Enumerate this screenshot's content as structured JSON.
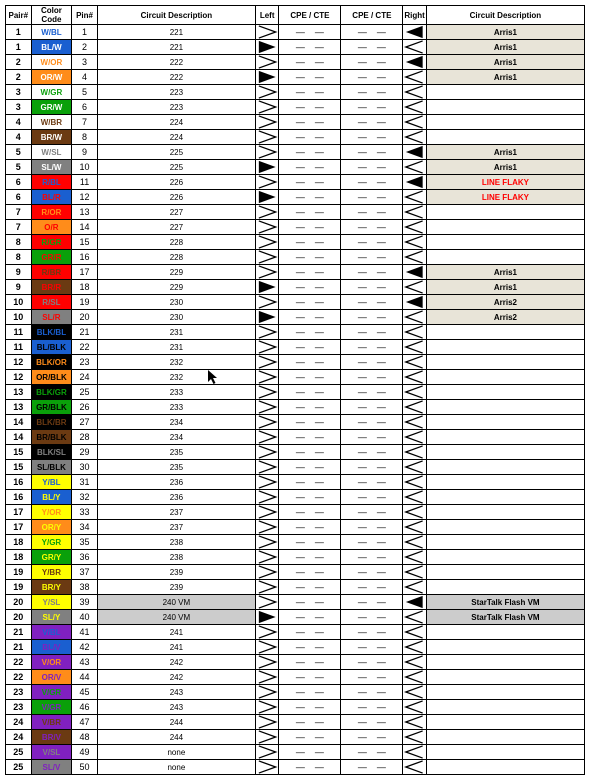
{
  "headers": {
    "pair": "Pair#",
    "color": "Color Code",
    "pin": "Pin#",
    "descL": "Circuit Description",
    "left": "Left",
    "cpe1": "CPE / CTE",
    "cpe2": "CPE / CTE",
    "right": "Right",
    "descR": "Circuit Description"
  },
  "tri_svg": {
    "open_left": "<svg viewBox='0 0 20 15'><polyline points='1,1 19,7.5 1,14' fill='none' stroke='#000' stroke-width='1.4'/></svg>",
    "open_right": "<svg viewBox='0 0 20 15'><polyline points='19,1 1,7.5 19,14' fill='none' stroke='#000' stroke-width='1.4'/></svg>",
    "solid_left": "<svg viewBox='0 0 20 15'><polygon points='1,1 19,7.5 1,14' fill='#000'/></svg>",
    "solid_right": "<svg viewBox='0 0 20 15'><polygon points='19,1 1,7.5 19,14' fill='#000'/></svg>"
  },
  "highlight_bg": "#cccccc",
  "descR_bg_default": "#e8e4d8",
  "descR_fg_red": "#ff0000",
  "cpe_dash": "—",
  "cursor": {
    "row_index": 23,
    "col": "descL"
  },
  "rows": [
    {
      "pair": "1",
      "cc": "W/BL",
      "bg": "#ffffff",
      "fg": "#1a5fd0",
      "pin": "1",
      "descL": "221",
      "left": "open",
      "right": "solid",
      "descR": "Arris1",
      "descR_bg": "#e8e4d8"
    },
    {
      "pair": "1",
      "cc": "BL/W",
      "bg": "#1a5fd0",
      "fg": "#ffffff",
      "pin": "2",
      "descL": "221",
      "left": "solid",
      "right": "open",
      "descR": "Arris1",
      "descR_bg": "#e8e4d8"
    },
    {
      "pair": "2",
      "cc": "W/OR",
      "bg": "#ffffff",
      "fg": "#ff8c1a",
      "pin": "3",
      "descL": "222",
      "left": "open",
      "right": "solid",
      "descR": "Arris1",
      "descR_bg": "#e8e4d8"
    },
    {
      "pair": "2",
      "cc": "OR/W",
      "bg": "#ff8c1a",
      "fg": "#ffffff",
      "pin": "4",
      "descL": "222",
      "left": "solid",
      "right": "open",
      "descR": "Arris1",
      "descR_bg": "#e8e4d8"
    },
    {
      "pair": "3",
      "cc": "W/GR",
      "bg": "#ffffff",
      "fg": "#0aa00a",
      "pin": "5",
      "descL": "223",
      "left": "open",
      "right": "open",
      "descR": ""
    },
    {
      "pair": "3",
      "cc": "GR/W",
      "bg": "#0aa00a",
      "fg": "#ffffff",
      "pin": "6",
      "descL": "223",
      "left": "open",
      "right": "open",
      "descR": ""
    },
    {
      "pair": "4",
      "cc": "W/BR",
      "bg": "#ffffff",
      "fg": "#6b3a12",
      "pin": "7",
      "descL": "224",
      "left": "open",
      "right": "open",
      "descR": ""
    },
    {
      "pair": "4",
      "cc": "BR/W",
      "bg": "#6b3a12",
      "fg": "#ffffff",
      "pin": "8",
      "descL": "224",
      "left": "open",
      "right": "open",
      "descR": ""
    },
    {
      "pair": "5",
      "cc": "W/SL",
      "bg": "#ffffff",
      "fg": "#808080",
      "pin": "9",
      "descL": "225",
      "left": "open",
      "right": "solid",
      "descR": "Arris1",
      "descR_bg": "#e8e4d8"
    },
    {
      "pair": "5",
      "cc": "SL/W",
      "bg": "#808080",
      "fg": "#ffffff",
      "pin": "10",
      "descL": "225",
      "left": "solid",
      "right": "open",
      "descR": "Arris1",
      "descR_bg": "#e8e4d8"
    },
    {
      "pair": "6",
      "cc": "R/BL",
      "bg": "#ff0000",
      "fg": "#1a5fd0",
      "pin": "11",
      "descL": "226",
      "left": "open",
      "right": "solid",
      "descR": "LINE FLAKY",
      "descR_bg": "#e8e4d8",
      "descR_fg": "#ff0000"
    },
    {
      "pair": "6",
      "cc": "BL/R",
      "bg": "#1a5fd0",
      "fg": "#ff0000",
      "pin": "12",
      "descL": "226",
      "left": "solid",
      "right": "open",
      "descR": "LINE FLAKY",
      "descR_bg": "#e8e4d8",
      "descR_fg": "#ff0000"
    },
    {
      "pair": "7",
      "cc": "R/OR",
      "bg": "#ff0000",
      "fg": "#ff8c1a",
      "pin": "13",
      "descL": "227",
      "left": "open",
      "right": "open",
      "descR": ""
    },
    {
      "pair": "7",
      "cc": "O/R",
      "bg": "#ff8c1a",
      "fg": "#ff0000",
      "pin": "14",
      "descL": "227",
      "left": "open",
      "right": "open",
      "descR": ""
    },
    {
      "pair": "8",
      "cc": "R/GR",
      "bg": "#ff0000",
      "fg": "#0aa00a",
      "pin": "15",
      "descL": "228",
      "left": "open",
      "right": "open",
      "descR": ""
    },
    {
      "pair": "8",
      "cc": "GR/R",
      "bg": "#0aa00a",
      "fg": "#ff0000",
      "pin": "16",
      "descL": "228",
      "left": "open",
      "right": "open",
      "descR": ""
    },
    {
      "pair": "9",
      "cc": "R/BR",
      "bg": "#ff0000",
      "fg": "#6b3a12",
      "pin": "17",
      "descL": "229",
      "left": "open",
      "right": "solid",
      "descR": "Arris1",
      "descR_bg": "#e8e4d8"
    },
    {
      "pair": "9",
      "cc": "BR/R",
      "bg": "#6b3a12",
      "fg": "#ff0000",
      "pin": "18",
      "descL": "229",
      "left": "solid",
      "right": "open",
      "descR": "Arris1",
      "descR_bg": "#e8e4d8"
    },
    {
      "pair": "10",
      "cc": "R/SL",
      "bg": "#ff0000",
      "fg": "#808080",
      "pin": "19",
      "descL": "230",
      "left": "open",
      "right": "solid",
      "descR": "Arris2",
      "descR_bg": "#e8e4d8"
    },
    {
      "pair": "10",
      "cc": "SL/R",
      "bg": "#808080",
      "fg": "#ff0000",
      "pin": "20",
      "descL": "230",
      "left": "solid",
      "right": "open",
      "descR": "Arris2",
      "descR_bg": "#e8e4d8"
    },
    {
      "pair": "11",
      "cc": "BLK/BL",
      "bg": "#000000",
      "fg": "#1a5fd0",
      "pin": "21",
      "descL": "231",
      "left": "open",
      "right": "open",
      "descR": ""
    },
    {
      "pair": "11",
      "cc": "BL/BLK",
      "bg": "#1a5fd0",
      "fg": "#000000",
      "pin": "22",
      "descL": "231",
      "left": "open",
      "right": "open",
      "descR": ""
    },
    {
      "pair": "12",
      "cc": "BLK/OR",
      "bg": "#000000",
      "fg": "#ff8c1a",
      "pin": "23",
      "descL": "232",
      "left": "open",
      "right": "open",
      "descR": ""
    },
    {
      "pair": "12",
      "cc": "OR/BLK",
      "bg": "#ff8c1a",
      "fg": "#000000",
      "pin": "24",
      "descL": "232",
      "left": "open",
      "right": "open",
      "descR": ""
    },
    {
      "pair": "13",
      "cc": "BLK/GR",
      "bg": "#000000",
      "fg": "#0aa00a",
      "pin": "25",
      "descL": "233",
      "left": "open",
      "right": "open",
      "descR": ""
    },
    {
      "pair": "13",
      "cc": "GR/BLK",
      "bg": "#0aa00a",
      "fg": "#000000",
      "pin": "26",
      "descL": "233",
      "left": "open",
      "right": "open",
      "descR": ""
    },
    {
      "pair": "14",
      "cc": "BLK/BR",
      "bg": "#000000",
      "fg": "#6b3a12",
      "pin": "27",
      "descL": "234",
      "left": "open",
      "right": "open",
      "descR": ""
    },
    {
      "pair": "14",
      "cc": "BR/BLK",
      "bg": "#6b3a12",
      "fg": "#000000",
      "pin": "28",
      "descL": "234",
      "left": "open",
      "right": "open",
      "descR": ""
    },
    {
      "pair": "15",
      "cc": "BLK/SL",
      "bg": "#000000",
      "fg": "#808080",
      "pin": "29",
      "descL": "235",
      "left": "open",
      "right": "open",
      "descR": ""
    },
    {
      "pair": "15",
      "cc": "SL/BLK",
      "bg": "#808080",
      "fg": "#000000",
      "pin": "30",
      "descL": "235",
      "left": "open",
      "right": "open",
      "descR": ""
    },
    {
      "pair": "16",
      "cc": "Y/BL",
      "bg": "#ffff00",
      "fg": "#1a5fd0",
      "pin": "31",
      "descL": "236",
      "left": "open",
      "right": "open",
      "descR": ""
    },
    {
      "pair": "16",
      "cc": "BL/Y",
      "bg": "#1a5fd0",
      "fg": "#ffff00",
      "pin": "32",
      "descL": "236",
      "left": "open",
      "right": "open",
      "descR": ""
    },
    {
      "pair": "17",
      "cc": "Y/OR",
      "bg": "#ffff00",
      "fg": "#ff8c1a",
      "pin": "33",
      "descL": "237",
      "left": "open",
      "right": "open",
      "descR": ""
    },
    {
      "pair": "17",
      "cc": "OR/Y",
      "bg": "#ff8c1a",
      "fg": "#ffff00",
      "pin": "34",
      "descL": "237",
      "left": "open",
      "right": "open",
      "descR": ""
    },
    {
      "pair": "18",
      "cc": "Y/GR",
      "bg": "#ffff00",
      "fg": "#0aa00a",
      "pin": "35",
      "descL": "238",
      "left": "open",
      "right": "open",
      "descR": ""
    },
    {
      "pair": "18",
      "cc": "GR/Y",
      "bg": "#0aa00a",
      "fg": "#ffff00",
      "pin": "36",
      "descL": "238",
      "left": "open",
      "right": "open",
      "descR": ""
    },
    {
      "pair": "19",
      "cc": "Y/BR",
      "bg": "#ffff00",
      "fg": "#6b3a12",
      "pin": "37",
      "descL": "239",
      "left": "open",
      "right": "open",
      "descR": ""
    },
    {
      "pair": "19",
      "cc": "BR/Y",
      "bg": "#6b3a12",
      "fg": "#ffff00",
      "pin": "38",
      "descL": "239",
      "left": "open",
      "right": "open",
      "descR": ""
    },
    {
      "pair": "20",
      "cc": "Y/SL",
      "bg": "#ffff00",
      "fg": "#808080",
      "pin": "39",
      "descL": "240 VM",
      "descL_bg": "#cccccc",
      "left": "open",
      "right": "solid",
      "descR": "StarTalk Flash VM",
      "descR_bg": "#cccccc"
    },
    {
      "pair": "20",
      "cc": "SL/Y",
      "bg": "#808080",
      "fg": "#ffff00",
      "pin": "40",
      "descL": "240 VM",
      "descL_bg": "#cccccc",
      "left": "solid",
      "right": "open",
      "descR": "StarTalk Flash VM",
      "descR_bg": "#cccccc"
    },
    {
      "pair": "21",
      "cc": "V/BL",
      "bg": "#8020c0",
      "fg": "#1a5fd0",
      "pin": "41",
      "descL": "241",
      "left": "open",
      "right": "open",
      "descR": ""
    },
    {
      "pair": "21",
      "cc": "BL/V",
      "bg": "#1a5fd0",
      "fg": "#8020c0",
      "pin": "42",
      "descL": "241",
      "left": "open",
      "right": "open",
      "descR": ""
    },
    {
      "pair": "22",
      "cc": "V/OR",
      "bg": "#8020c0",
      "fg": "#ff8c1a",
      "pin": "43",
      "descL": "242",
      "left": "open",
      "right": "open",
      "descR": ""
    },
    {
      "pair": "22",
      "cc": "OR/V",
      "bg": "#ff8c1a",
      "fg": "#8020c0",
      "pin": "44",
      "descL": "242",
      "left": "open",
      "right": "open",
      "descR": ""
    },
    {
      "pair": "23",
      "cc": "V/GR",
      "bg": "#8020c0",
      "fg": "#0aa00a",
      "pin": "45",
      "descL": "243",
      "left": "open",
      "right": "open",
      "descR": ""
    },
    {
      "pair": "23",
      "cc": "V/GR",
      "bg": "#0aa00a",
      "fg": "#8020c0",
      "pin": "46",
      "descL": "243",
      "left": "open",
      "right": "open",
      "descR": ""
    },
    {
      "pair": "24",
      "cc": "V/BR",
      "bg": "#8020c0",
      "fg": "#6b3a12",
      "pin": "47",
      "descL": "244",
      "left": "open",
      "right": "open",
      "descR": ""
    },
    {
      "pair": "24",
      "cc": "BR/V",
      "bg": "#6b3a12",
      "fg": "#8020c0",
      "pin": "48",
      "descL": "244",
      "left": "open",
      "right": "open",
      "descR": ""
    },
    {
      "pair": "25",
      "cc": "V/SL",
      "bg": "#8020c0",
      "fg": "#808080",
      "pin": "49",
      "descL": "none",
      "left": "open",
      "right": "open",
      "descR": ""
    },
    {
      "pair": "25",
      "cc": "SL/V",
      "bg": "#808080",
      "fg": "#8020c0",
      "pin": "50",
      "descL": "none",
      "left": "open",
      "right": "open",
      "descR": ""
    }
  ]
}
